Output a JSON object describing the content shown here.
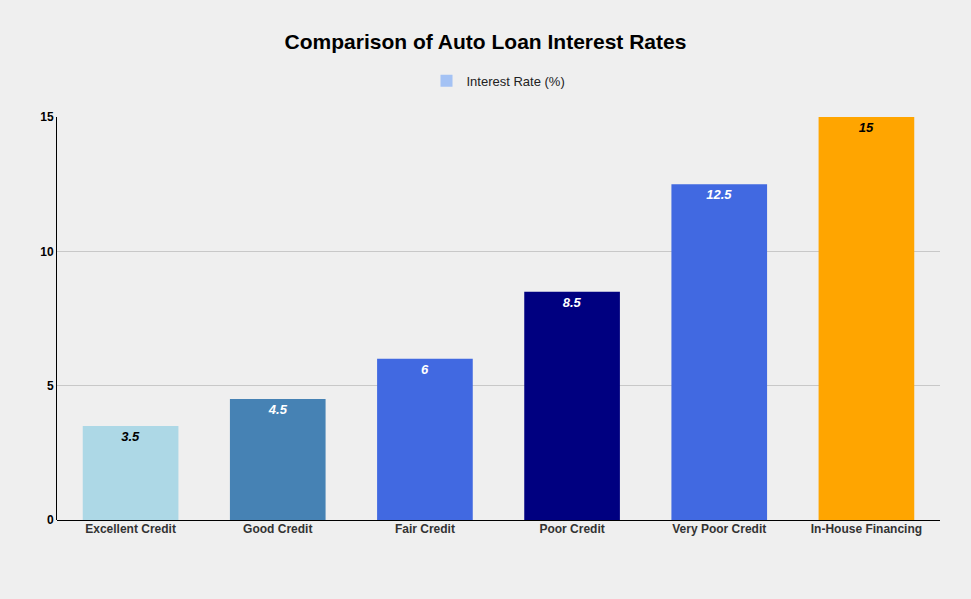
{
  "chart_data": {
    "type": "bar",
    "title": "Comparison of Auto Loan Interest Rates",
    "categories": [
      "Excellent Credit",
      "Good Credit",
      "Fair Credit",
      "Poor Credit",
      "Very Poor Credit",
      "In-House Financing"
    ],
    "series": [
      {
        "name": "Interest Rate (%)",
        "color": "#a4c2f4",
        "values": [
          3.5,
          4.5,
          6,
          8.5,
          12.5,
          15
        ],
        "colors": [
          "#add8e6",
          "#4682b4",
          "#4169e1",
          "#000080",
          "#4169e1",
          "#ffa500"
        ]
      }
    ],
    "ylim": [
      0,
      15
    ],
    "yticks": [
      0,
      5,
      10,
      15
    ],
    "grid": true,
    "legend": "top",
    "data_labels": true
  }
}
